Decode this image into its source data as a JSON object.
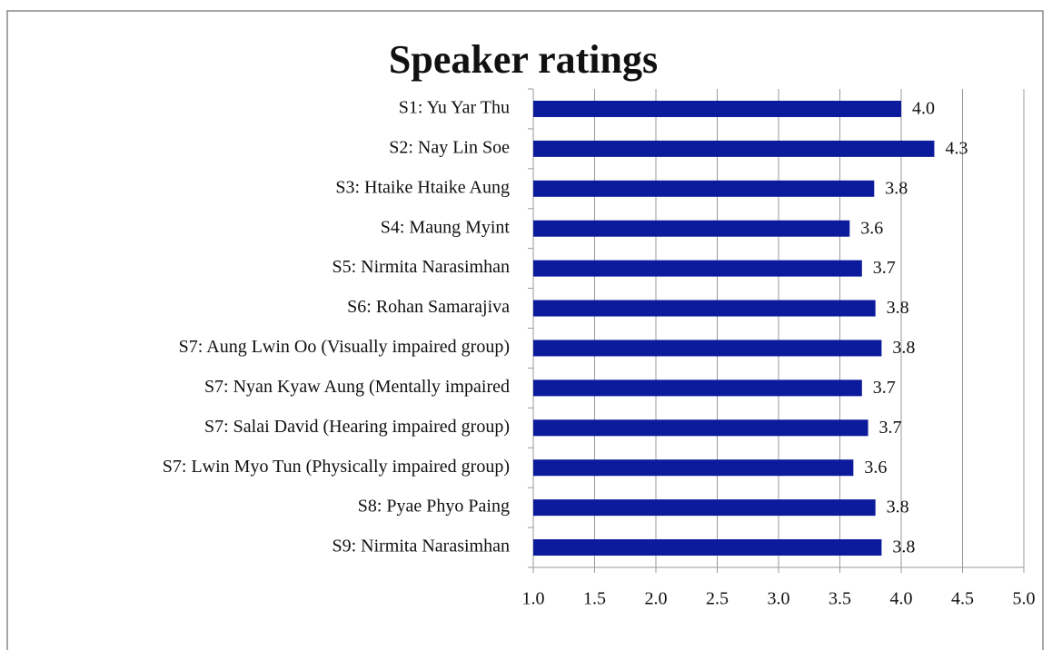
{
  "chart_data": {
    "type": "bar",
    "orientation": "horizontal",
    "title": "Speaker ratings",
    "categories": [
      "S1: Yu Yar Thu",
      "S2: Nay Lin Soe",
      "S3: Htaike Htaike Aung",
      "S4: Maung Myint",
      "S5: Nirmita Narasimhan",
      "S6: Rohan Samarajiva",
      "S7: Aung Lwin Oo (Visually impaired group)",
      "S7: Nyan Kyaw Aung (Mentally impaired",
      "S7: Salai David (Hearing impaired group)",
      "S7: Lwin Myo Tun (Physically impaired group)",
      "S8:  Pyae Phyo Paing",
      "S9: Nirmita Narasimhan"
    ],
    "values": [
      4.0,
      4.27,
      3.78,
      3.58,
      3.68,
      3.79,
      3.84,
      3.68,
      3.73,
      3.61,
      3.79,
      3.84
    ],
    "value_labels": [
      "4.0",
      "4.3",
      "3.8",
      "3.6",
      "3.7",
      "3.8",
      "3.8",
      "3.7",
      "3.7",
      "3.6",
      "3.8",
      "3.8"
    ],
    "color": "#0c1a9c",
    "xlim": [
      1,
      5
    ],
    "xticks": [
      {
        "value": 1,
        "label": "1.0"
      },
      {
        "value": 1.5,
        "label": "1.5"
      },
      {
        "value": 2,
        "label": "2.0"
      },
      {
        "value": 2.5,
        "label": "2.5"
      },
      {
        "value": 3,
        "label": "3.0"
      },
      {
        "value": 3.5,
        "label": "3.5"
      },
      {
        "value": 4,
        "label": "4.0"
      },
      {
        "value": 4.5,
        "label": "4.5"
      },
      {
        "value": 5,
        "label": "5.0"
      }
    ],
    "grid": true
  }
}
